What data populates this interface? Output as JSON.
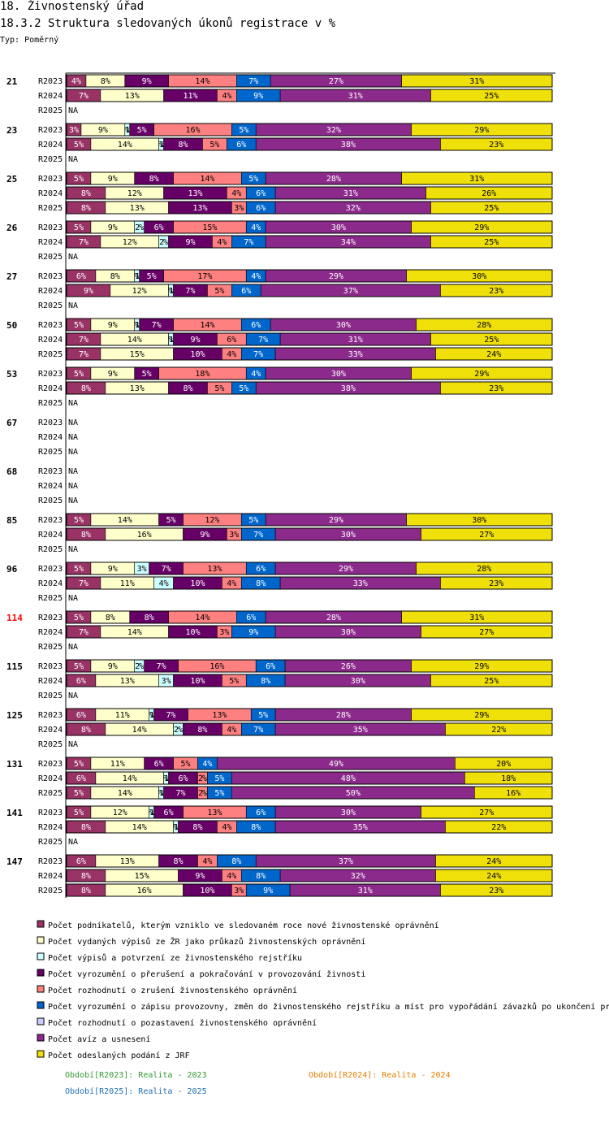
{
  "page": {
    "title": "18. Živnostenský úřad",
    "subtitle": "18.3.2 Struktura sledovaných úkonů registrace v %",
    "type_label": "Typ: Poměrný"
  },
  "chart_data": {
    "type": "bar",
    "orientation": "horizontal",
    "stacked": true,
    "normalized": true,
    "unit": "%",
    "xlim": [
      0,
      100
    ],
    "na_label": "NA",
    "highlight_color": "#ff0000",
    "series": [
      {
        "name": "Počet podnikatelů, kterým vzniklo ve sledovaném roce nové živnostenské oprávnění",
        "color": "#993366"
      },
      {
        "name": "Počet vydaných výpisů ze ŽR jako průkazů živnostenských oprávnění",
        "color": "#ffffcc"
      },
      {
        "name": "Počet výpisů a potvrzení ze živnostenského rejstříku",
        "color": "#ccffff"
      },
      {
        "name": "Počet vyrozumění o přerušení a pokračování v provozování živnosti",
        "color": "#660066"
      },
      {
        "name": "Počet rozhodnutí o zrušení živnostenského oprávnění",
        "color": "#ff8080"
      },
      {
        "name": "Počet vyrozumění o zápisu provozovny, změn do živnostenského rejstříku a míst pro vypořádání závazků po ukončení pr",
        "color": "#0066cc"
      },
      {
        "name": "Počet rozhodnutí o pozastavení živnostenského oprávnění",
        "color": "#ccccff"
      },
      {
        "name": "Počet avíz a usnesení",
        "color": "#8b2a8b"
      },
      {
        "name": "Počet odeslaných podání z JRF",
        "color": "#f0e00a"
      }
    ],
    "groups": [
      {
        "name": "21",
        "highlight": false,
        "rows": [
          {
            "period": "R2023",
            "values": [
              4,
              8,
              0,
              9,
              14,
              7,
              0,
              27,
              31
            ]
          },
          {
            "period": "R2024",
            "values": [
              7,
              13,
              0,
              11,
              4,
              9,
              0,
              31,
              25
            ]
          },
          {
            "period": "R2025",
            "values": null
          }
        ]
      },
      {
        "name": "23",
        "highlight": false,
        "rows": [
          {
            "period": "R2023",
            "values": [
              3,
              9,
              1,
              5,
              16,
              5,
              0,
              32,
              29
            ]
          },
          {
            "period": "R2024",
            "values": [
              5,
              14,
              1,
              8,
              5,
              6,
              0,
              38,
              23
            ]
          },
          {
            "period": "R2025",
            "values": null
          }
        ]
      },
      {
        "name": "25",
        "highlight": false,
        "rows": [
          {
            "period": "R2023",
            "values": [
              5,
              9,
              0,
              8,
              14,
              5,
              0,
              28,
              31
            ]
          },
          {
            "period": "R2024",
            "values": [
              8,
              12,
              0,
              13,
              4,
              6,
              0,
              31,
              26
            ]
          },
          {
            "period": "R2025",
            "values": [
              8,
              13,
              0,
              13,
              3,
              6,
              0,
              32,
              25
            ]
          }
        ]
      },
      {
        "name": "26",
        "highlight": false,
        "rows": [
          {
            "period": "R2023",
            "values": [
              5,
              9,
              2,
              6,
              15,
              4,
              0,
              30,
              29
            ]
          },
          {
            "period": "R2024",
            "values": [
              7,
              12,
              2,
              9,
              4,
              7,
              0,
              34,
              25
            ]
          },
          {
            "period": "R2025",
            "values": null
          }
        ]
      },
      {
        "name": "27",
        "highlight": false,
        "rows": [
          {
            "period": "R2023",
            "values": [
              6,
              8,
              1,
              5,
              17,
              4,
              0,
              29,
              30
            ]
          },
          {
            "period": "R2024",
            "values": [
              9,
              12,
              1,
              7,
              5,
              6,
              0,
              37,
              23
            ]
          },
          {
            "period": "R2025",
            "values": null
          }
        ]
      },
      {
        "name": "50",
        "highlight": false,
        "rows": [
          {
            "period": "R2023",
            "values": [
              5,
              9,
              1,
              7,
              14,
              6,
              0,
              30,
              28
            ]
          },
          {
            "period": "R2024",
            "values": [
              7,
              14,
              1,
              9,
              6,
              7,
              0,
              31,
              25
            ]
          },
          {
            "period": "R2025",
            "values": [
              7,
              15,
              0,
              10,
              4,
              7,
              0,
              33,
              24
            ]
          }
        ]
      },
      {
        "name": "53",
        "highlight": false,
        "rows": [
          {
            "period": "R2023",
            "values": [
              5,
              9,
              0,
              5,
              18,
              4,
              0,
              30,
              29
            ]
          },
          {
            "period": "R2024",
            "values": [
              8,
              13,
              0,
              8,
              5,
              5,
              0,
              38,
              23
            ]
          },
          {
            "period": "R2025",
            "values": null
          }
        ]
      },
      {
        "name": "67",
        "highlight": false,
        "rows": [
          {
            "period": "R2023",
            "values": null
          },
          {
            "period": "R2024",
            "values": null
          },
          {
            "period": "R2025",
            "values": null
          }
        ]
      },
      {
        "name": "68",
        "highlight": false,
        "rows": [
          {
            "period": "R2023",
            "values": null
          },
          {
            "period": "R2024",
            "values": null
          },
          {
            "period": "R2025",
            "values": null
          }
        ]
      },
      {
        "name": "85",
        "highlight": false,
        "rows": [
          {
            "period": "R2023",
            "values": [
              5,
              14,
              0,
              5,
              12,
              5,
              0,
              29,
              30
            ]
          },
          {
            "period": "R2024",
            "values": [
              8,
              16,
              0,
              9,
              3,
              7,
              0,
              30,
              27
            ]
          },
          {
            "period": "R2025",
            "values": null
          }
        ]
      },
      {
        "name": "96",
        "highlight": false,
        "rows": [
          {
            "period": "R2023",
            "values": [
              5,
              9,
              3,
              7,
              13,
              6,
              0,
              29,
              28
            ]
          },
          {
            "period": "R2024",
            "values": [
              7,
              11,
              4,
              10,
              4,
              8,
              0,
              33,
              23
            ]
          },
          {
            "period": "R2025",
            "values": null
          }
        ]
      },
      {
        "name": "114",
        "highlight": true,
        "rows": [
          {
            "period": "R2023",
            "values": [
              5,
              8,
              0,
              8,
              14,
              6,
              0,
              28,
              31
            ]
          },
          {
            "period": "R2024",
            "values": [
              7,
              14,
              0,
              10,
              3,
              9,
              0,
              30,
              27
            ]
          },
          {
            "period": "R2025",
            "values": null
          }
        ]
      },
      {
        "name": "115",
        "highlight": false,
        "rows": [
          {
            "period": "R2023",
            "values": [
              5,
              9,
              2,
              7,
              16,
              6,
              0,
              26,
              29
            ]
          },
          {
            "period": "R2024",
            "values": [
              6,
              13,
              3,
              10,
              5,
              8,
              0,
              30,
              25
            ]
          },
          {
            "period": "R2025",
            "values": null
          }
        ]
      },
      {
        "name": "125",
        "highlight": false,
        "rows": [
          {
            "period": "R2023",
            "values": [
              6,
              11,
              1,
              7,
              13,
              5,
              0,
              28,
              29
            ]
          },
          {
            "period": "R2024",
            "values": [
              8,
              14,
              2,
              8,
              4,
              7,
              0,
              35,
              22
            ]
          },
          {
            "period": "R2025",
            "values": null
          }
        ]
      },
      {
        "name": "131",
        "highlight": false,
        "rows": [
          {
            "period": "R2023",
            "values": [
              5,
              11,
              0,
              6,
              5,
              4,
              0,
              49,
              20
            ]
          },
          {
            "period": "R2024",
            "values": [
              6,
              14,
              1,
              6,
              2,
              5,
              0,
              48,
              18
            ]
          },
          {
            "period": "R2025",
            "values": [
              5,
              14,
              1,
              7,
              2,
              5,
              0,
              50,
              16
            ]
          }
        ]
      },
      {
        "name": "141",
        "highlight": false,
        "rows": [
          {
            "period": "R2023",
            "values": [
              5,
              12,
              1,
              6,
              13,
              6,
              0,
              30,
              27
            ]
          },
          {
            "period": "R2024",
            "values": [
              8,
              14,
              1,
              8,
              4,
              8,
              0,
              35,
              22
            ]
          },
          {
            "period": "R2025",
            "values": null
          }
        ]
      },
      {
        "name": "147",
        "highlight": false,
        "rows": [
          {
            "period": "R2023",
            "values": [
              6,
              13,
              0,
              8,
              4,
              8,
              0,
              37,
              24
            ]
          },
          {
            "period": "R2024",
            "values": [
              8,
              15,
              0,
              9,
              4,
              8,
              0,
              32,
              24
            ]
          },
          {
            "period": "R2025",
            "values": [
              8,
              16,
              0,
              10,
              3,
              9,
              0,
              31,
              23
            ]
          }
        ]
      }
    ],
    "periods": [
      {
        "text": "Období[R2023]: Realita - 2023",
        "color": "#339933"
      },
      {
        "text": "Období[R2024]: Realita - 2024",
        "color": "#e67e00"
      },
      {
        "text": "Období[R2025]: Realita - 2025",
        "color": "#1f6fb5"
      }
    ]
  }
}
